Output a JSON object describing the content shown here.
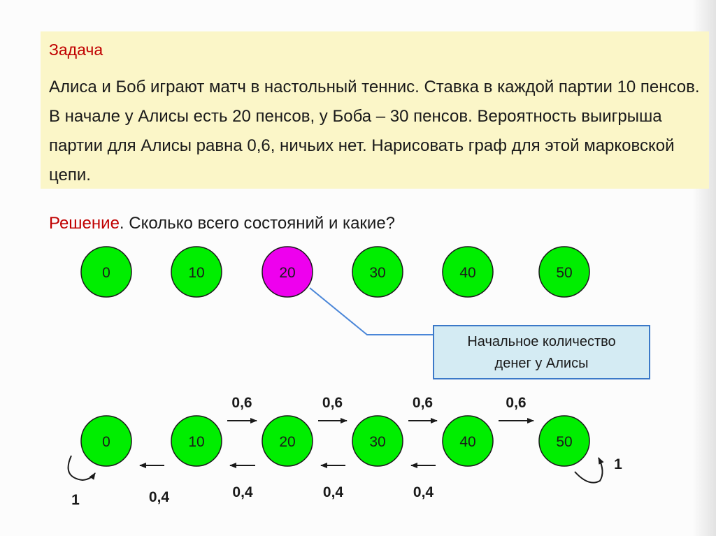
{
  "task": {
    "title": "Задача",
    "text": "Алиса и Боб играют матч в настольный теннис. Ставка в каждой партии 10 пенсов. В начале у Алисы есть 20 пенсов, у Боба – 30 пенсов. Вероятность выигрыша партии для Алисы равна 0,6, ничьих нет. Нарисовать граф для этой марковской цепи."
  },
  "solution": {
    "word": "Решение",
    "question": ". Сколько всего состояний и какие?"
  },
  "states": [
    "0",
    "10",
    "20",
    "30",
    "40",
    "50"
  ],
  "initial_state": "20",
  "callout": {
    "line1": "Начальное количество",
    "line2": "денег у Алисы"
  },
  "graph": {
    "forward_prob": "0,6",
    "backward_prob": "0,4",
    "absorbing_prob": "1"
  },
  "colors": {
    "state_fill": "#00ee00",
    "initial_fill": "#ee00ee",
    "title_red": "#c00000",
    "callout_border": "#3b79c8",
    "connector": "#4a86d8"
  }
}
